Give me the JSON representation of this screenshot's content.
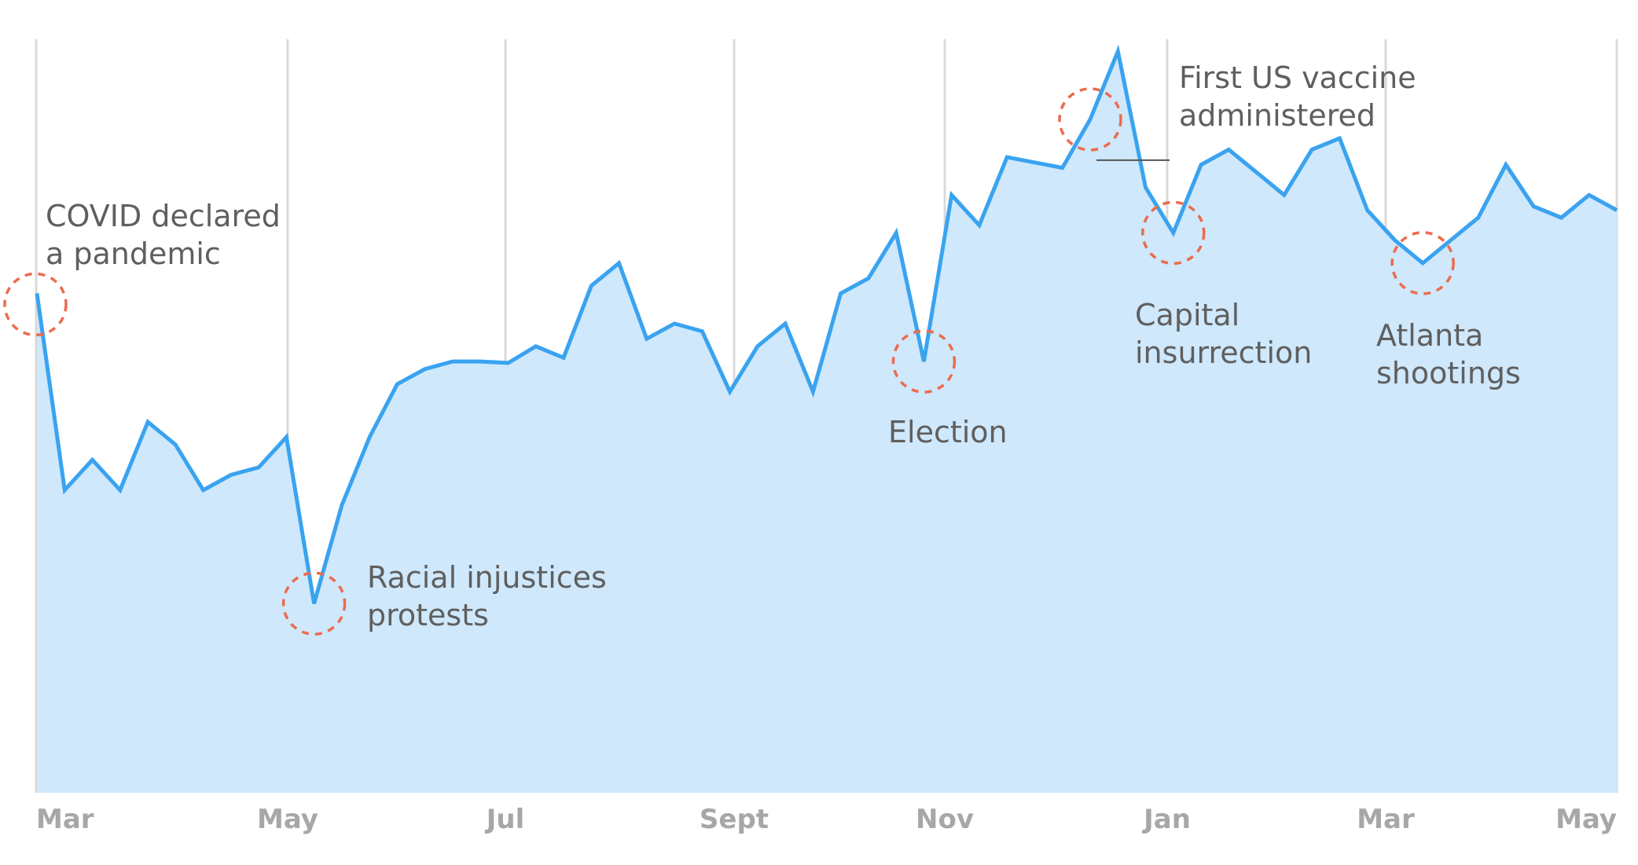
{
  "chart_data": {
    "type": "area",
    "title": "",
    "xlabel": "",
    "ylabel": "",
    "x_ticks": [
      "Mar",
      "May",
      "Jul",
      "Sept",
      "Nov",
      "Jan",
      "Mar",
      "May"
    ],
    "ylim": [
      0,
      100
    ],
    "grid": "vertical",
    "colors": {
      "line": "#3aa3f0",
      "fill": "#cfe8fb",
      "grid": "#d9d9d9",
      "marker": "#ec6b4e",
      "tick": "#a7a7a7",
      "annotation": "#5f5f5f"
    },
    "series": [
      {
        "values": [
          66,
          40,
          44,
          40,
          49,
          46,
          40,
          42,
          43,
          47,
          25,
          38,
          47,
          54,
          56,
          57,
          57,
          56.8,
          59,
          57.5,
          67,
          70,
          60,
          62,
          61,
          53,
          59,
          62,
          53,
          66,
          68,
          74,
          57,
          79,
          75,
          84,
          83.3,
          82.6,
          89,
          98,
          80,
          74,
          83,
          85,
          82,
          79,
          85,
          86.5,
          77,
          73,
          70,
          73,
          76,
          83,
          77.5,
          76,
          79,
          77
        ]
      }
    ],
    "annotations": [
      {
        "index": 0,
        "lines": [
          "COVID declared",
          "a pandemic"
        ]
      },
      {
        "index": 10,
        "lines": [
          "Racial injustices",
          "protests"
        ]
      },
      {
        "index": 32,
        "lines": [
          "Election"
        ]
      },
      {
        "index": 38,
        "lines": [
          "First US vaccine",
          "administered"
        ]
      },
      {
        "index": 41,
        "lines": [
          "Capital",
          "insurrection"
        ]
      },
      {
        "index": 50,
        "lines": [
          "Atlanta",
          "shootings"
        ]
      }
    ]
  }
}
